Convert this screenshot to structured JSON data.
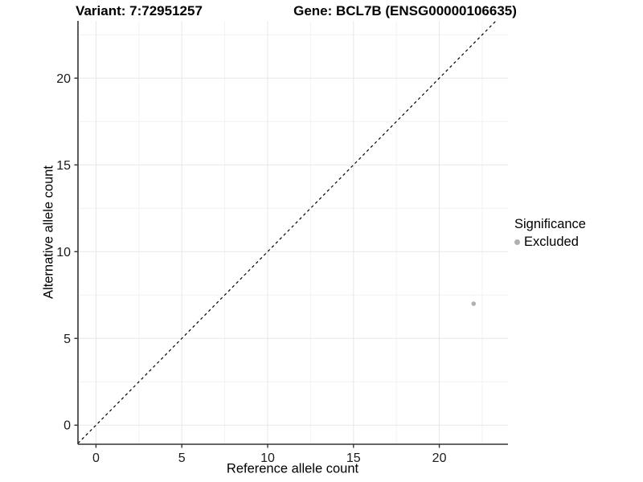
{
  "header": {
    "variant_title": "Variant: 7:72951257",
    "gene_title": "Gene: BCL7B (ENSG00000106635)"
  },
  "chart_data": {
    "type": "scatter",
    "xlabel": "Reference allele count",
    "ylabel": "Alternative allele count",
    "xlim": [
      -1.05,
      24.0
    ],
    "ylim": [
      -1.1,
      23.3
    ],
    "xticks": [
      0,
      5,
      10,
      15,
      20
    ],
    "yticks": [
      0,
      5,
      10,
      15,
      20
    ],
    "x_minor_gridlines": [
      2.5,
      7.5,
      12.5,
      17.5,
      22.5
    ],
    "y_minor_gridlines": [
      2.5,
      7.5,
      12.5,
      17.5,
      22.5
    ],
    "grid": true,
    "points": [
      {
        "x": 22,
        "y": 7,
        "series": "Excluded"
      }
    ],
    "reference_line": {
      "type": "identity",
      "style": "dashed",
      "equation": "y = x"
    },
    "legend": {
      "title": "Significance",
      "position": "right",
      "items": [
        {
          "label": "Excluded",
          "color": "#b0b0b0"
        }
      ]
    },
    "colors": {
      "point": "#b0b0b0",
      "grid_major": "#e7e7e7",
      "grid_minor": "#f2f2f2",
      "axis": "#333333",
      "reference_line": "#000000",
      "tick_text": "#1b1b1b"
    }
  }
}
